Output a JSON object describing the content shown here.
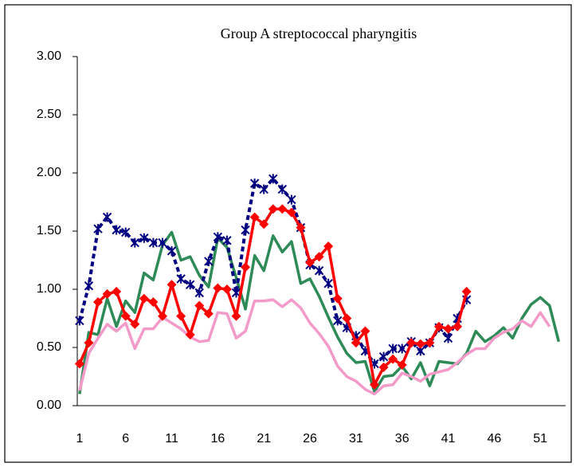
{
  "chart_data": {
    "type": "line",
    "title": "Group A streptococcal pharyngitis",
    "x": [
      1,
      2,
      3,
      4,
      5,
      6,
      7,
      8,
      9,
      10,
      11,
      12,
      13,
      14,
      15,
      16,
      17,
      18,
      19,
      20,
      21,
      22,
      23,
      24,
      25,
      26,
      27,
      28,
      29,
      30,
      31,
      32,
      33,
      34,
      35,
      36,
      37,
      38,
      39,
      40,
      41,
      42,
      43,
      44,
      45,
      46,
      47,
      48,
      49,
      50,
      51,
      52,
      53
    ],
    "xlim": [
      0.75,
      53.75
    ],
    "xticks": [
      1,
      6,
      11,
      16,
      21,
      26,
      31,
      36,
      41,
      46,
      51
    ],
    "ylim": [
      0,
      3
    ],
    "yticks": [
      {
        "value": 0,
        "label": "0.00"
      },
      {
        "value": 0.5,
        "label": "0.50"
      },
      {
        "value": 1,
        "label": "1.00"
      },
      {
        "value": 1.5,
        "label": "1.50"
      },
      {
        "value": 2,
        "label": "2.00"
      },
      {
        "value": 2.5,
        "label": "2.50"
      },
      {
        "value": 3,
        "label": "3.00"
      }
    ],
    "grid": false,
    "series": [
      {
        "color": "#2e8b57",
        "line_style": "solid",
        "marker": "none",
        "values": [
          0.1,
          0.63,
          0.61,
          0.92,
          0.68,
          0.9,
          0.8,
          1.14,
          1.08,
          1.38,
          1.49,
          1.25,
          1.28,
          1.12,
          1.02,
          1.44,
          1.36,
          1.1,
          0.83,
          1.29,
          1.16,
          1.46,
          1.32,
          1.41,
          1.05,
          1.09,
          0.94,
          0.76,
          0.59,
          0.45,
          0.37,
          0.38,
          0.12,
          0.25,
          0.26,
          0.34,
          0.23,
          0.37,
          0.17,
          0.38,
          0.37,
          0.36,
          0.45,
          0.64,
          0.55,
          0.6,
          0.67,
          0.58,
          0.75,
          0.87,
          0.93,
          0.86,
          0.55
        ]
      },
      {
        "color": "#f39ac9",
        "line_style": "solid",
        "marker": "none",
        "values": [
          0.13,
          0.45,
          0.58,
          0.7,
          0.64,
          0.71,
          0.49,
          0.66,
          0.66,
          0.76,
          0.71,
          0.66,
          0.59,
          0.55,
          0.56,
          0.8,
          0.79,
          0.58,
          0.64,
          0.9,
          0.9,
          0.91,
          0.85,
          0.91,
          0.84,
          0.71,
          0.62,
          0.51,
          0.34,
          0.25,
          0.21,
          0.14,
          0.1,
          0.17,
          0.18,
          0.28,
          0.25,
          0.21,
          0.27,
          0.29,
          0.31,
          0.37,
          0.44,
          0.49,
          0.49,
          0.58,
          0.63,
          0.66,
          0.73,
          0.68,
          0.8,
          0.68,
          null
        ]
      },
      {
        "color": "#000080",
        "line_style": "dashed",
        "marker": "star",
        "values": [
          0.73,
          1.03,
          1.52,
          1.62,
          1.51,
          1.49,
          1.4,
          1.44,
          1.4,
          1.4,
          1.33,
          1.09,
          1.04,
          0.97,
          1.24,
          1.45,
          1.42,
          0.97,
          1.51,
          1.91,
          1.86,
          1.95,
          1.86,
          1.77,
          1.53,
          1.21,
          1.16,
          1.05,
          0.73,
          0.67,
          0.6,
          0.47,
          0.36,
          0.42,
          0.49,
          0.49,
          0.55,
          0.47,
          0.54,
          0.67,
          0.58,
          0.75,
          0.91,
          null,
          null,
          null,
          null,
          null,
          null,
          null,
          null,
          null,
          null
        ]
      },
      {
        "color": "#ff0000",
        "line_style": "solid",
        "marker": "diamond",
        "values": [
          0.36,
          0.54,
          0.89,
          0.96,
          0.98,
          0.77,
          0.7,
          0.92,
          0.89,
          0.77,
          1.04,
          0.77,
          0.61,
          0.86,
          0.79,
          1.01,
          1.0,
          0.77,
          1.19,
          1.62,
          1.56,
          1.69,
          1.69,
          1.66,
          1.53,
          1.23,
          1.28,
          1.37,
          0.92,
          0.75,
          0.54,
          0.64,
          0.18,
          0.33,
          0.4,
          0.35,
          0.54,
          0.53,
          0.54,
          0.68,
          0.66,
          0.68,
          0.98,
          null,
          null,
          null,
          null,
          null,
          null,
          null,
          null,
          null,
          null
        ]
      }
    ]
  }
}
